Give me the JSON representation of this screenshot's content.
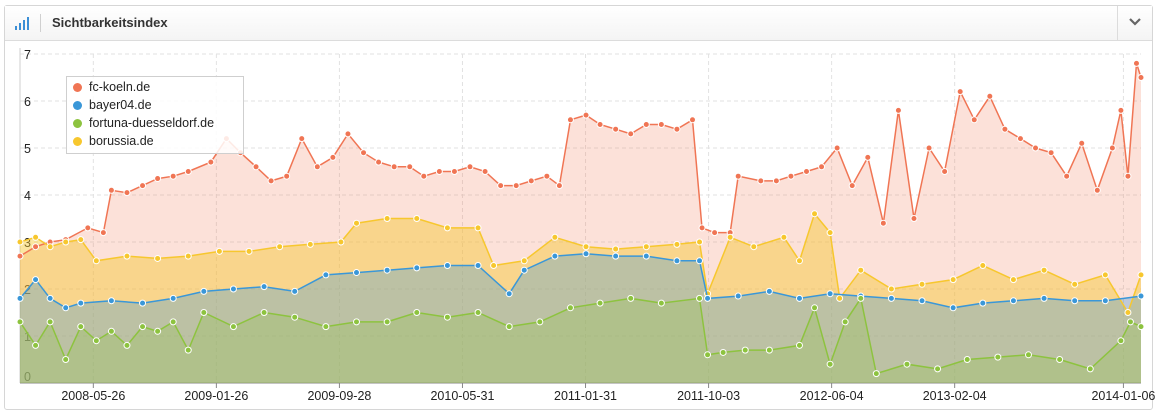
{
  "header": {
    "title": "Sichtbarkeitsindex",
    "icon": "signal-bars-icon",
    "collapse_icon": "chevron-down-icon"
  },
  "chart_data": {
    "type": "area",
    "title": "",
    "xlabel": "",
    "ylabel": "",
    "ylim": [
      0,
      7
    ],
    "y_ticks": [
      "0",
      "1",
      "2",
      "3",
      "4",
      "5",
      "6",
      "7"
    ],
    "x_ticks": [
      "2008-05-26",
      "2009-01-26",
      "2009-09-28",
      "2010-05-31",
      "2011-01-31",
      "2011-10-03",
      "2012-06-04",
      "2013-02-04",
      "2014-01-06"
    ],
    "x_range": [
      "2008-01-01",
      "2014-02-10"
    ],
    "grid": true,
    "legend_position": "top-left",
    "series": [
      {
        "name": "fc-koeln.de",
        "color": "#f07554",
        "points": [
          [
            "2008-01-01",
            2.7
          ],
          [
            "2008-02-01",
            2.9
          ],
          [
            "2008-03-01",
            3.0
          ],
          [
            "2008-04-01",
            3.05
          ],
          [
            "2008-05-15",
            3.3
          ],
          [
            "2008-06-15",
            3.2
          ],
          [
            "2008-07-01",
            4.1
          ],
          [
            "2008-08-01",
            4.05
          ],
          [
            "2008-09-01",
            4.2
          ],
          [
            "2008-10-01",
            4.35
          ],
          [
            "2008-11-01",
            4.4
          ],
          [
            "2008-12-01",
            4.5
          ],
          [
            "2009-01-15",
            4.7
          ],
          [
            "2009-02-15",
            5.2
          ],
          [
            "2009-03-15",
            4.9
          ],
          [
            "2009-04-15",
            4.6
          ],
          [
            "2009-05-15",
            4.3
          ],
          [
            "2009-06-15",
            4.4
          ],
          [
            "2009-07-15",
            5.2
          ],
          [
            "2009-08-15",
            4.6
          ],
          [
            "2009-09-15",
            4.8
          ],
          [
            "2009-10-15",
            5.3
          ],
          [
            "2009-11-15",
            4.9
          ],
          [
            "2009-12-15",
            4.7
          ],
          [
            "2010-01-15",
            4.6
          ],
          [
            "2010-02-15",
            4.6
          ],
          [
            "2010-03-15",
            4.4
          ],
          [
            "2010-04-15",
            4.5
          ],
          [
            "2010-05-15",
            4.5
          ],
          [
            "2010-06-15",
            4.6
          ],
          [
            "2010-07-15",
            4.5
          ],
          [
            "2010-08-15",
            4.2
          ],
          [
            "2010-09-15",
            4.2
          ],
          [
            "2010-10-15",
            4.3
          ],
          [
            "2010-11-15",
            4.4
          ],
          [
            "2010-12-10",
            4.2
          ],
          [
            "2011-01-01",
            5.6
          ],
          [
            "2011-02-01",
            5.7
          ],
          [
            "2011-03-01",
            5.5
          ],
          [
            "2011-04-01",
            5.4
          ],
          [
            "2011-05-01",
            5.3
          ],
          [
            "2011-06-01",
            5.5
          ],
          [
            "2011-07-01",
            5.5
          ],
          [
            "2011-08-01",
            5.4
          ],
          [
            "2011-09-01",
            5.6
          ],
          [
            "2011-09-20",
            3.3
          ],
          [
            "2011-10-15",
            3.2
          ],
          [
            "2011-11-15",
            3.2
          ],
          [
            "2011-12-01",
            4.4
          ],
          [
            "2012-01-15",
            4.3
          ],
          [
            "2012-02-15",
            4.3
          ],
          [
            "2012-03-15",
            4.4
          ],
          [
            "2012-04-15",
            4.5
          ],
          [
            "2012-05-15",
            4.6
          ],
          [
            "2012-06-15",
            5.0
          ],
          [
            "2012-07-15",
            4.2
          ],
          [
            "2012-08-15",
            4.8
          ],
          [
            "2012-09-15",
            3.4
          ],
          [
            "2012-10-15",
            5.8
          ],
          [
            "2012-11-15",
            3.5
          ],
          [
            "2012-12-15",
            5.0
          ],
          [
            "2013-01-15",
            4.5
          ],
          [
            "2013-02-15",
            6.2
          ],
          [
            "2013-03-15",
            5.6
          ],
          [
            "2013-04-15",
            6.1
          ],
          [
            "2013-05-15",
            5.4
          ],
          [
            "2013-06-15",
            5.2
          ],
          [
            "2013-07-15",
            5.0
          ],
          [
            "2013-08-15",
            4.9
          ],
          [
            "2013-09-15",
            4.4
          ],
          [
            "2013-10-15",
            5.1
          ],
          [
            "2013-11-15",
            4.1
          ],
          [
            "2013-12-15",
            5.0
          ],
          [
            "2014-01-01",
            5.8
          ],
          [
            "2014-01-15",
            4.4
          ],
          [
            "2014-02-01",
            6.8
          ],
          [
            "2014-02-10",
            6.5
          ]
        ]
      },
      {
        "name": "bayer04.de",
        "color": "#3a97d8",
        "points": [
          [
            "2008-01-01",
            1.8
          ],
          [
            "2008-02-01",
            2.2
          ],
          [
            "2008-03-01",
            1.8
          ],
          [
            "2008-04-01",
            1.6
          ],
          [
            "2008-05-01",
            1.7
          ],
          [
            "2008-07-01",
            1.75
          ],
          [
            "2008-09-01",
            1.7
          ],
          [
            "2008-11-01",
            1.8
          ],
          [
            "2009-01-01",
            1.95
          ],
          [
            "2009-03-01",
            2.0
          ],
          [
            "2009-05-01",
            2.05
          ],
          [
            "2009-07-01",
            1.95
          ],
          [
            "2009-09-01",
            2.3
          ],
          [
            "2009-11-01",
            2.35
          ],
          [
            "2010-01-01",
            2.4
          ],
          [
            "2010-03-01",
            2.45
          ],
          [
            "2010-05-01",
            2.5
          ],
          [
            "2010-07-01",
            2.5
          ],
          [
            "2010-09-01",
            1.9
          ],
          [
            "2010-10-01",
            2.4
          ],
          [
            "2010-12-01",
            2.7
          ],
          [
            "2011-02-01",
            2.75
          ],
          [
            "2011-04-01",
            2.7
          ],
          [
            "2011-06-01",
            2.7
          ],
          [
            "2011-08-01",
            2.6
          ],
          [
            "2011-09-15",
            2.6
          ],
          [
            "2011-10-01",
            1.8
          ],
          [
            "2011-12-01",
            1.85
          ],
          [
            "2012-02-01",
            1.95
          ],
          [
            "2012-04-01",
            1.8
          ],
          [
            "2012-06-01",
            1.9
          ],
          [
            "2012-08-01",
            1.85
          ],
          [
            "2012-10-01",
            1.8
          ],
          [
            "2012-12-01",
            1.75
          ],
          [
            "2013-02-01",
            1.6
          ],
          [
            "2013-04-01",
            1.7
          ],
          [
            "2013-06-01",
            1.75
          ],
          [
            "2013-08-01",
            1.8
          ],
          [
            "2013-10-01",
            1.75
          ],
          [
            "2013-12-01",
            1.75
          ],
          [
            "2014-02-10",
            1.85
          ]
        ]
      },
      {
        "name": "fortuna-duesseldorf.de",
        "color": "#8dc33f",
        "points": [
          [
            "2008-01-01",
            1.3
          ],
          [
            "2008-02-01",
            0.8
          ],
          [
            "2008-03-01",
            1.3
          ],
          [
            "2008-04-01",
            0.5
          ],
          [
            "2008-05-01",
            1.2
          ],
          [
            "2008-06-01",
            0.9
          ],
          [
            "2008-07-01",
            1.1
          ],
          [
            "2008-08-01",
            0.8
          ],
          [
            "2008-09-01",
            1.2
          ],
          [
            "2008-10-01",
            1.1
          ],
          [
            "2008-11-01",
            1.3
          ],
          [
            "2008-12-01",
            0.7
          ],
          [
            "2009-01-01",
            1.5
          ],
          [
            "2009-03-01",
            1.2
          ],
          [
            "2009-05-01",
            1.5
          ],
          [
            "2009-07-01",
            1.4
          ],
          [
            "2009-09-01",
            1.2
          ],
          [
            "2009-11-01",
            1.3
          ],
          [
            "2010-01-01",
            1.3
          ],
          [
            "2010-03-01",
            1.5
          ],
          [
            "2010-05-01",
            1.4
          ],
          [
            "2010-07-01",
            1.5
          ],
          [
            "2010-09-01",
            1.2
          ],
          [
            "2010-11-01",
            1.3
          ],
          [
            "2011-01-01",
            1.6
          ],
          [
            "2011-03-01",
            1.7
          ],
          [
            "2011-05-01",
            1.8
          ],
          [
            "2011-07-01",
            1.7
          ],
          [
            "2011-09-15",
            1.8
          ],
          [
            "2011-10-01",
            0.6
          ],
          [
            "2011-11-01",
            0.65
          ],
          [
            "2011-12-15",
            0.7
          ],
          [
            "2012-02-01",
            0.7
          ],
          [
            "2012-04-01",
            0.8
          ],
          [
            "2012-05-01",
            1.6
          ],
          [
            "2012-06-01",
            0.4
          ],
          [
            "2012-07-01",
            1.3
          ],
          [
            "2012-08-01",
            1.8
          ],
          [
            "2012-09-01",
            0.2
          ],
          [
            "2012-11-01",
            0.4
          ],
          [
            "2013-01-01",
            0.3
          ],
          [
            "2013-03-01",
            0.5
          ],
          [
            "2013-05-01",
            0.55
          ],
          [
            "2013-07-01",
            0.6
          ],
          [
            "2013-09-01",
            0.5
          ],
          [
            "2013-11-01",
            0.3
          ],
          [
            "2014-01-01",
            0.9
          ],
          [
            "2014-01-20",
            1.3
          ],
          [
            "2014-02-10",
            1.2
          ]
        ]
      },
      {
        "name": "borussia.de",
        "color": "#f7c72e",
        "points": [
          [
            "2008-01-01",
            3.0
          ],
          [
            "2008-02-01",
            3.1
          ],
          [
            "2008-03-01",
            2.9
          ],
          [
            "2008-04-01",
            3.0
          ],
          [
            "2008-05-01",
            3.05
          ],
          [
            "2008-06-01",
            2.6
          ],
          [
            "2008-08-01",
            2.7
          ],
          [
            "2008-10-01",
            2.65
          ],
          [
            "2008-12-01",
            2.7
          ],
          [
            "2009-02-01",
            2.8
          ],
          [
            "2009-04-01",
            2.8
          ],
          [
            "2009-06-01",
            2.9
          ],
          [
            "2009-08-01",
            2.95
          ],
          [
            "2009-10-01",
            3.0
          ],
          [
            "2009-11-01",
            3.4
          ],
          [
            "2010-01-01",
            3.5
          ],
          [
            "2010-03-01",
            3.5
          ],
          [
            "2010-05-01",
            3.3
          ],
          [
            "2010-07-01",
            3.3
          ],
          [
            "2010-08-01",
            2.5
          ],
          [
            "2010-10-01",
            2.6
          ],
          [
            "2010-12-01",
            3.1
          ],
          [
            "2011-02-01",
            2.9
          ],
          [
            "2011-04-01",
            2.85
          ],
          [
            "2011-06-01",
            2.9
          ],
          [
            "2011-08-01",
            2.95
          ],
          [
            "2011-09-15",
            3.0
          ],
          [
            "2011-10-01",
            1.9
          ],
          [
            "2011-11-15",
            3.1
          ],
          [
            "2012-01-01",
            2.9
          ],
          [
            "2012-03-01",
            3.1
          ],
          [
            "2012-04-01",
            2.6
          ],
          [
            "2012-05-01",
            3.6
          ],
          [
            "2012-06-01",
            3.2
          ],
          [
            "2012-06-20",
            1.8
          ],
          [
            "2012-08-01",
            2.4
          ],
          [
            "2012-10-01",
            2.0
          ],
          [
            "2012-12-01",
            2.1
          ],
          [
            "2013-02-01",
            2.2
          ],
          [
            "2013-04-01",
            2.5
          ],
          [
            "2013-06-01",
            2.2
          ],
          [
            "2013-08-01",
            2.4
          ],
          [
            "2013-10-01",
            2.1
          ],
          [
            "2013-12-01",
            2.3
          ],
          [
            "2014-01-15",
            1.5
          ],
          [
            "2014-02-10",
            2.3
          ]
        ]
      }
    ]
  }
}
